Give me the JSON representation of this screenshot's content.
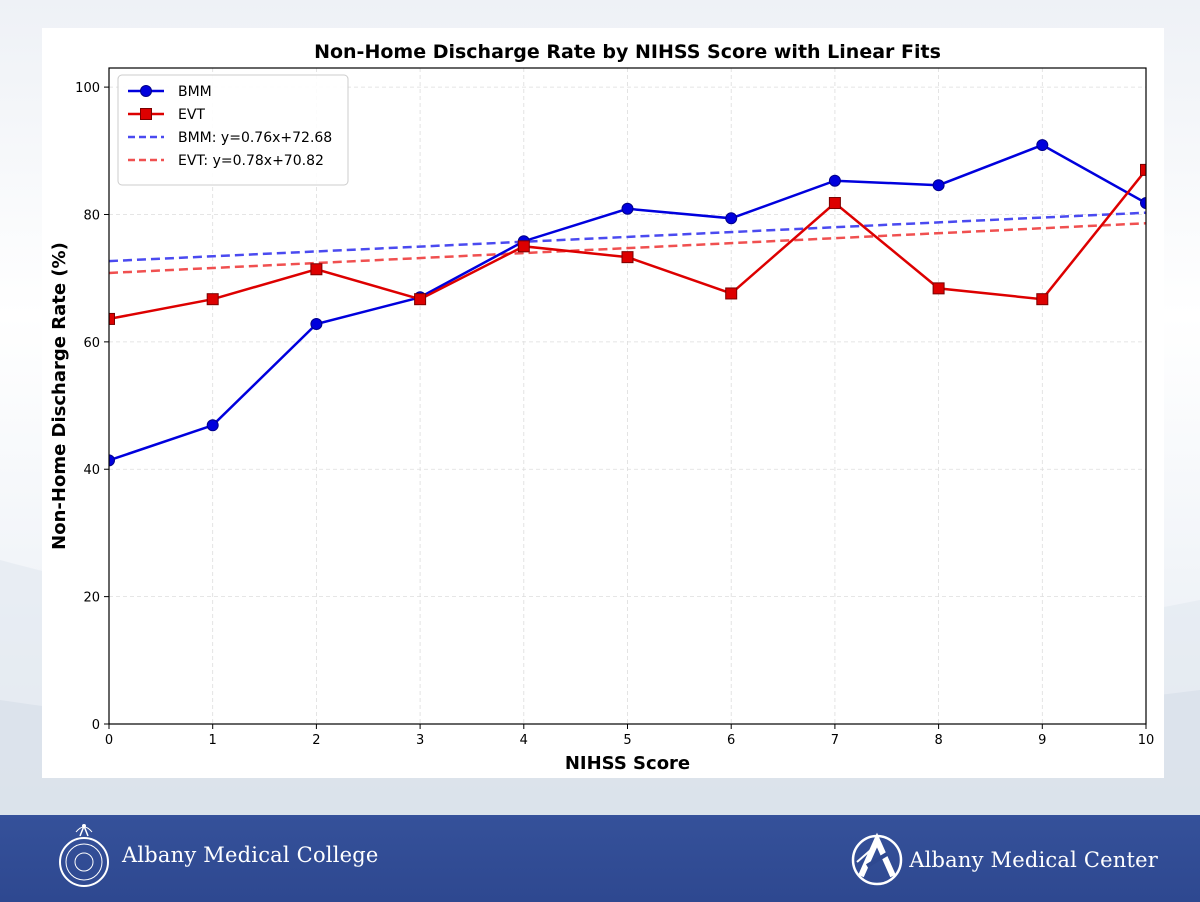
{
  "footer": {
    "college_name": "Albany Medical College",
    "center_name": "Albany Medical Center",
    "seal_icon": "college-seal-icon",
    "center_logo_icon": "albany-a-logo-icon"
  },
  "colors": {
    "bmm": "#0000dd",
    "evt": "#dd0000",
    "bmm_fit": "#4a4af0",
    "evt_fit": "#f05050",
    "footer_band": "#2e4890"
  },
  "chart_data": {
    "type": "line",
    "title": "Non-Home Discharge Rate by NIHSS Score with Linear Fits",
    "xlabel": "NIHSS Score",
    "ylabel": "Non-Home Discharge Rate (%)",
    "xlim": [
      0,
      10
    ],
    "ylim": [
      0,
      103
    ],
    "xticks": [
      "0",
      "1",
      "2",
      "3",
      "4",
      "5",
      "6",
      "7",
      "8",
      "9",
      "10"
    ],
    "yticks": [
      "0",
      "20",
      "40",
      "60",
      "80",
      "100"
    ],
    "grid": true,
    "legend_position": "top-left",
    "x": [
      0,
      1,
      2,
      3,
      4,
      5,
      6,
      7,
      8,
      9,
      10
    ],
    "series": [
      {
        "name": "BMM",
        "marker": "circle",
        "color": "#0000dd",
        "values": [
          41.4,
          46.9,
          62.8,
          67.0,
          75.8,
          80.9,
          79.4,
          85.3,
          84.6,
          90.9,
          81.8
        ]
      },
      {
        "name": "EVT",
        "marker": "square",
        "color": "#dd0000",
        "values": [
          63.6,
          66.7,
          71.4,
          66.7,
          75.0,
          73.3,
          67.6,
          81.8,
          68.4,
          66.7,
          87.0
        ]
      }
    ],
    "fits": [
      {
        "name": "BMM: y=0.76x+72.68",
        "slope": 0.76,
        "intercept": 72.68,
        "color": "#4a4af0",
        "style": "dashed"
      },
      {
        "name": "EVT: y=0.78x+70.82",
        "slope": 0.78,
        "intercept": 70.82,
        "color": "#f05050",
        "style": "dashed"
      }
    ]
  }
}
